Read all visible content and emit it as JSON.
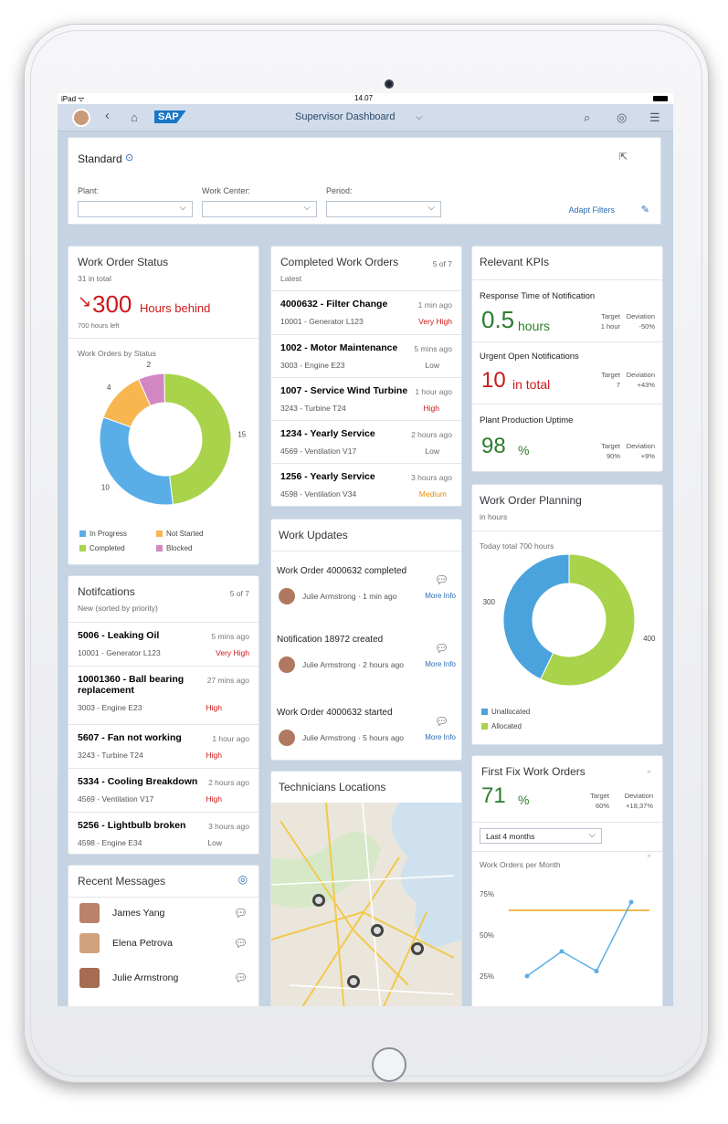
{
  "status_bar": {
    "carrier": "iPad ᯤ",
    "time": "14.07"
  },
  "shell": {
    "title": "Supervisor Dashboard",
    "logo": "SAP"
  },
  "filter_bar": {
    "variant": "Standard",
    "fields": [
      {
        "label": "Plant:",
        "value": ""
      },
      {
        "label": "Work Center:",
        "value": ""
      },
      {
        "label": "Period:",
        "value": ""
      }
    ],
    "adapt_label": "Adapt Filters"
  },
  "work_order_status": {
    "title": "Work Order Status",
    "subtitle": "31 in total",
    "kpi_value": "300",
    "kpi_unit": "Hours behind",
    "kpi_note": "700 hours left",
    "chart_title": "Work Orders by Status"
  },
  "chart_data": [
    {
      "type": "pie",
      "title": "Work Orders by Status",
      "categories": [
        "In Progress",
        "Not Started",
        "Completed",
        "Blocked"
      ],
      "values": [
        10,
        4,
        15,
        2
      ],
      "colors": [
        "#5aaee8",
        "#f7b650",
        "#a8d34a",
        "#d387c2"
      ],
      "legend_position": "bottom"
    },
    {
      "type": "pie",
      "title": "Today total 700 hours",
      "categories": [
        "Unallocated",
        "Allocated"
      ],
      "values": [
        300,
        400
      ],
      "colors": [
        "#4aa3dd",
        "#a8d34a"
      ],
      "legend_position": "bottom"
    },
    {
      "type": "line",
      "title": "Work Orders per Month",
      "y_ticks": [
        "75%",
        "50%",
        "25%"
      ],
      "series": [
        {
          "values": [
            25,
            40,
            28,
            70
          ],
          "color": "#5aaee8"
        }
      ],
      "target_line": {
        "value": 65,
        "color": "#e8a314"
      },
      "ylim": [
        20,
        80
      ]
    }
  ],
  "notifications": {
    "title": "Notifcations",
    "count": "5 of 7",
    "subtitle": "New (sorted by priority)",
    "items": [
      {
        "title": "5006 - Leaking Oil",
        "sub": "10001 - Generator L123",
        "time": "5 mins ago",
        "priority": "Very High"
      },
      {
        "title": "10001360 - Ball bearing replacement",
        "sub": "3003 - Engine E23",
        "time": "27 mins ago",
        "priority": "High"
      },
      {
        "title": "5607 - Fan not working",
        "sub": "3243 - Turbine T24",
        "time": "1 hour ago",
        "priority": "High"
      },
      {
        "title": "5334 - Cooling Breakdown",
        "sub": "4569 - Ventilation V17",
        "time": "2 hours ago",
        "priority": "High"
      },
      {
        "title": "5256 - Lightbulb  broken",
        "sub": "4598 - Engine E34",
        "time": "3 hours ago",
        "priority": "Low"
      }
    ]
  },
  "recent_messages": {
    "title": "Recent Messages",
    "items": [
      {
        "name": "James Yang"
      },
      {
        "name": "Elena Petrova"
      },
      {
        "name": "Julie Armstrong"
      }
    ]
  },
  "completed_work_orders": {
    "title": "Completed Work Orders",
    "count": "5 of 7",
    "subtitle": "Latest",
    "items": [
      {
        "title": "4000632 - Filter Change",
        "sub": "10001 - Generator L123",
        "time": "1 min ago",
        "priority": "Very High"
      },
      {
        "title": "1002 - Motor Maintenance",
        "sub": "3003 - Engine E23",
        "time": "5 mins ago",
        "priority": "Low"
      },
      {
        "title": "1007 - Service Wind Turbine",
        "sub": "3243 - Turbine T24",
        "time": "1 hour ago",
        "priority": "High"
      },
      {
        "title": "1234 - Yearly Service",
        "sub": "4569 - Ventilation V17",
        "time": "2 hours ago",
        "priority": "Low"
      },
      {
        "title": "1256 - Yearly Service",
        "sub": "4598 - Ventilation V34",
        "time": "3 hours ago",
        "priority": "Medium"
      }
    ]
  },
  "work_updates": {
    "title": "Work Updates",
    "items": [
      {
        "title": "Work Order 4000632 completed",
        "who": "Julie Armstrong · 1 min ago",
        "more": "More Info"
      },
      {
        "title": "Notification 18972 created",
        "who": "Julie Armstrong · 2 hours ago",
        "more": "More Info"
      },
      {
        "title": "Work Order 4000632 started",
        "who": "Julie Armstrong · 5 hours ago",
        "more": "More Info"
      }
    ]
  },
  "technicians": {
    "title": "Technicians Locations"
  },
  "relevant_kpis": {
    "title": "Relevant KPIs",
    "items": [
      {
        "label": "Response Time of Notification",
        "value": "0.5",
        "unit": "hours",
        "target": "1 hour",
        "deviation": "-50%",
        "color": "green"
      },
      {
        "label": "Urgent Open Notifications",
        "value": "10",
        "unit": "in total",
        "target": "7",
        "deviation": "+43%",
        "color": "red"
      },
      {
        "label": "Plant Production Uptime",
        "value": "98",
        "unit": "%",
        "target": "90%",
        "deviation": "+9%",
        "color": "green"
      }
    ],
    "target_label": "Target",
    "deviation_label": "Deviation"
  },
  "work_order_planning": {
    "title": "Work Order Planning",
    "subtitle": "in hours",
    "chart_title": "Today total 700 hours"
  },
  "first_fix": {
    "title": "First Fix Work Orders",
    "value": "71",
    "unit": "%",
    "target": "60%",
    "deviation": "+18,37%",
    "select": "Last 4 months",
    "chart_title": "Work Orders per Month"
  }
}
